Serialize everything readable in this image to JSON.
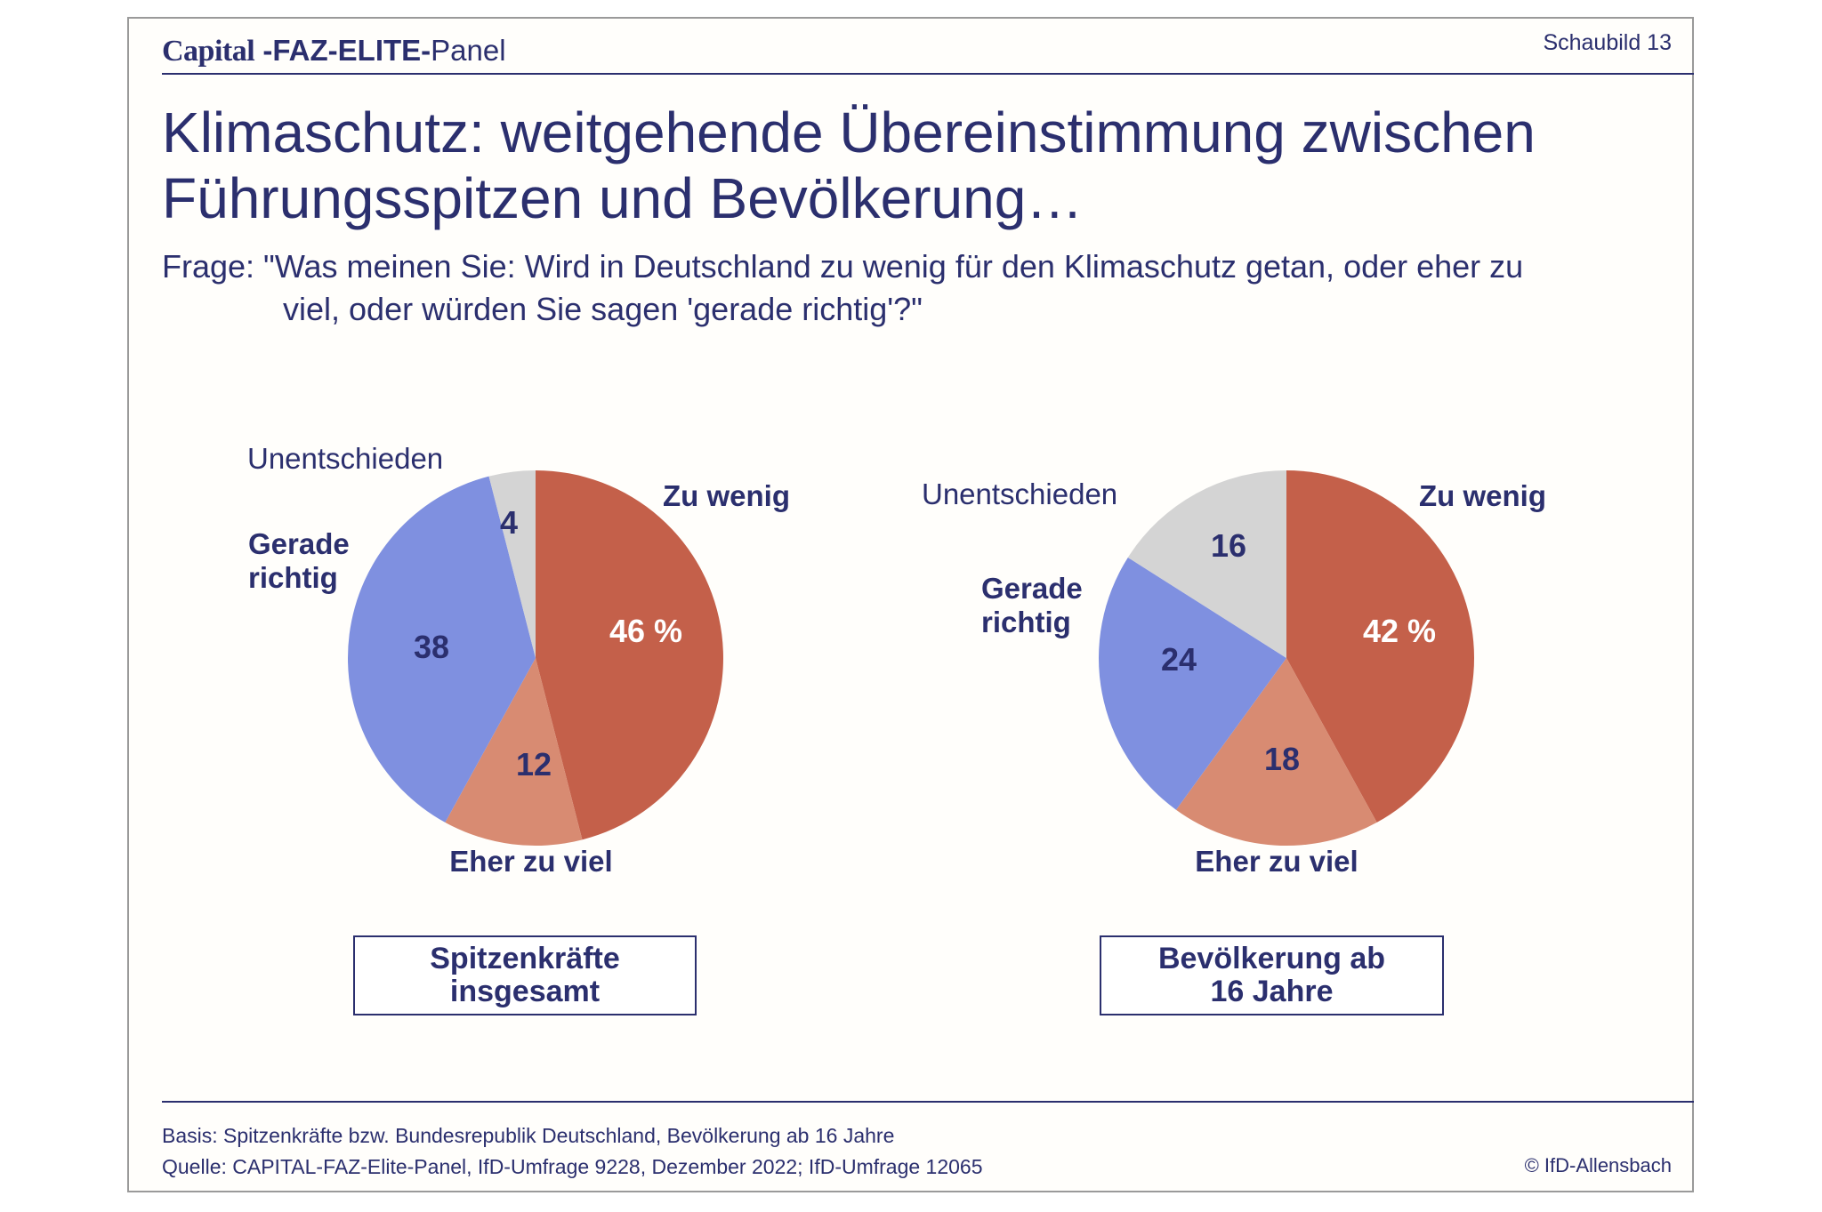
{
  "header": {
    "brand_capital": "Capital",
    "brand_elite": "-FAZ-ELITE-",
    "brand_panel": "Panel",
    "slide_label": "Schaubild 13"
  },
  "title_line1": "Klimaschutz: weitgehende Übereinstimmung zwischen",
  "title_line2": "Führungsspitzen und Bevölkerung…",
  "question_line1": "Frage: \"Was meinen Sie: Wird in Deutschland zu wenig für den Klimaschutz getan, oder eher zu",
  "question_line2": "viel, oder würden Sie sagen 'gerade richtig'?\"",
  "colors": {
    "zu_wenig": "#c4604a",
    "eher_zu_viel": "#d88b72",
    "gerade_richtig": "#7f90e0",
    "unentschieden": "#d4d4d4",
    "text": "#2b2f6e"
  },
  "chart_data": [
    {
      "type": "pie",
      "title": "Spitzenkräfte insgesamt",
      "title_lines": [
        "Spitzenkräfte",
        "insgesamt"
      ],
      "unit": "%",
      "slices": [
        {
          "label": "Zu wenig",
          "value": 46,
          "display": "46 %"
        },
        {
          "label": "Eher zu viel",
          "value": 12,
          "display": "12"
        },
        {
          "label": "Gerade richtig",
          "value": 38,
          "display": "38"
        },
        {
          "label": "Unentschieden",
          "value": 4,
          "display": "4"
        }
      ]
    },
    {
      "type": "pie",
      "title": "Bevölkerung ab 16 Jahre",
      "title_lines": [
        "Bevölkerung ab",
        "16 Jahre"
      ],
      "unit": "%",
      "slices": [
        {
          "label": "Zu wenig",
          "value": 42,
          "display": "42 %"
        },
        {
          "label": "Eher zu viel",
          "value": 18,
          "display": "18"
        },
        {
          "label": "Gerade richtig",
          "value": 24,
          "display": "24"
        },
        {
          "label": "Unentschieden",
          "value": 16,
          "display": "16"
        }
      ]
    }
  ],
  "footer": {
    "basis": "Basis: Spitzenkräfte bzw. Bundesrepublik Deutschland, Bevölkerung ab 16 Jahre",
    "source": "Quelle: CAPITAL-FAZ-Elite-Panel, IfD-Umfrage 9228, Dezember 2022; IfD-Umfrage 12065",
    "copyright": "© IfD-Allensbach"
  }
}
